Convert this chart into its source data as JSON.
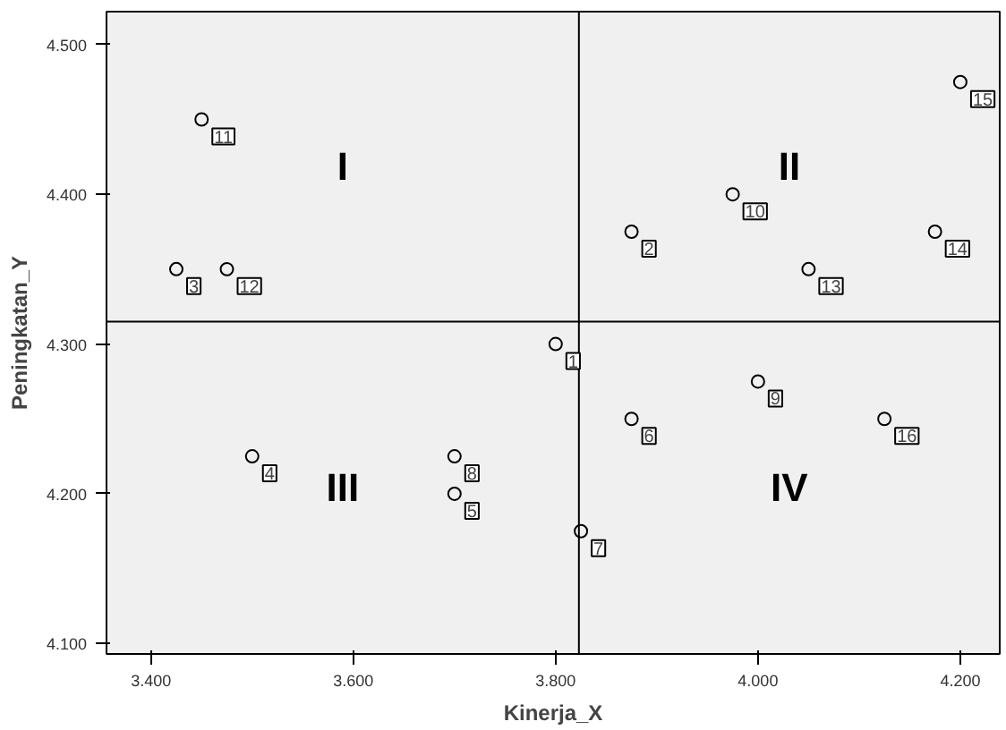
{
  "chart_data": {
    "type": "scatter",
    "xlabel": "Kinerja_X",
    "ylabel": "Peningkatan_Y",
    "x": [
      3.8,
      3.875,
      3.425,
      3.5,
      3.7,
      3.875,
      3.825,
      3.7,
      4.0,
      3.975,
      3.45,
      3.475,
      4.05,
      4.175,
      4.2,
      4.125
    ],
    "series": [
      {
        "color": "#000000",
        "values": [
          4.3,
          4.375,
          4.35,
          4.225,
          4.2,
          4.25,
          4.175,
          4.225,
          4.275,
          4.4,
          4.45,
          4.35,
          4.35,
          4.375,
          4.475,
          4.25
        ]
      }
    ],
    "value_labels": [
      "1",
      "2",
      "3",
      "4",
      "5",
      "6",
      "7",
      "8",
      "9",
      "10",
      "11",
      "12",
      "13",
      "14",
      "15",
      "16"
    ],
    "marker": "circle",
    "grid": false,
    "xlim": [
      3.356,
      4.239
    ],
    "ylim": [
      4.093,
      4.522
    ],
    "xticks": [
      {
        "value": 3.4,
        "label": "3.400"
      },
      {
        "value": 3.6,
        "label": "3.600"
      },
      {
        "value": 3.8,
        "label": "3.800"
      },
      {
        "value": 4.0,
        "label": "4.000"
      },
      {
        "value": 4.2,
        "label": "4.200"
      }
    ],
    "yticks": [
      {
        "value": 4.1,
        "label": "4.100"
      },
      {
        "value": 4.2,
        "label": "4.200"
      },
      {
        "value": 4.3,
        "label": "4.300"
      },
      {
        "value": 4.4,
        "label": "4.400"
      },
      {
        "value": 4.5,
        "label": "4.500"
      }
    ],
    "ref_lines": [
      {
        "axis": "x",
        "value": 3.823,
        "color": "#000000"
      },
      {
        "axis": "y",
        "value": 4.315,
        "color": "#000000"
      }
    ],
    "annotations": [
      "I",
      "II",
      "III",
      "IV"
    ]
  }
}
